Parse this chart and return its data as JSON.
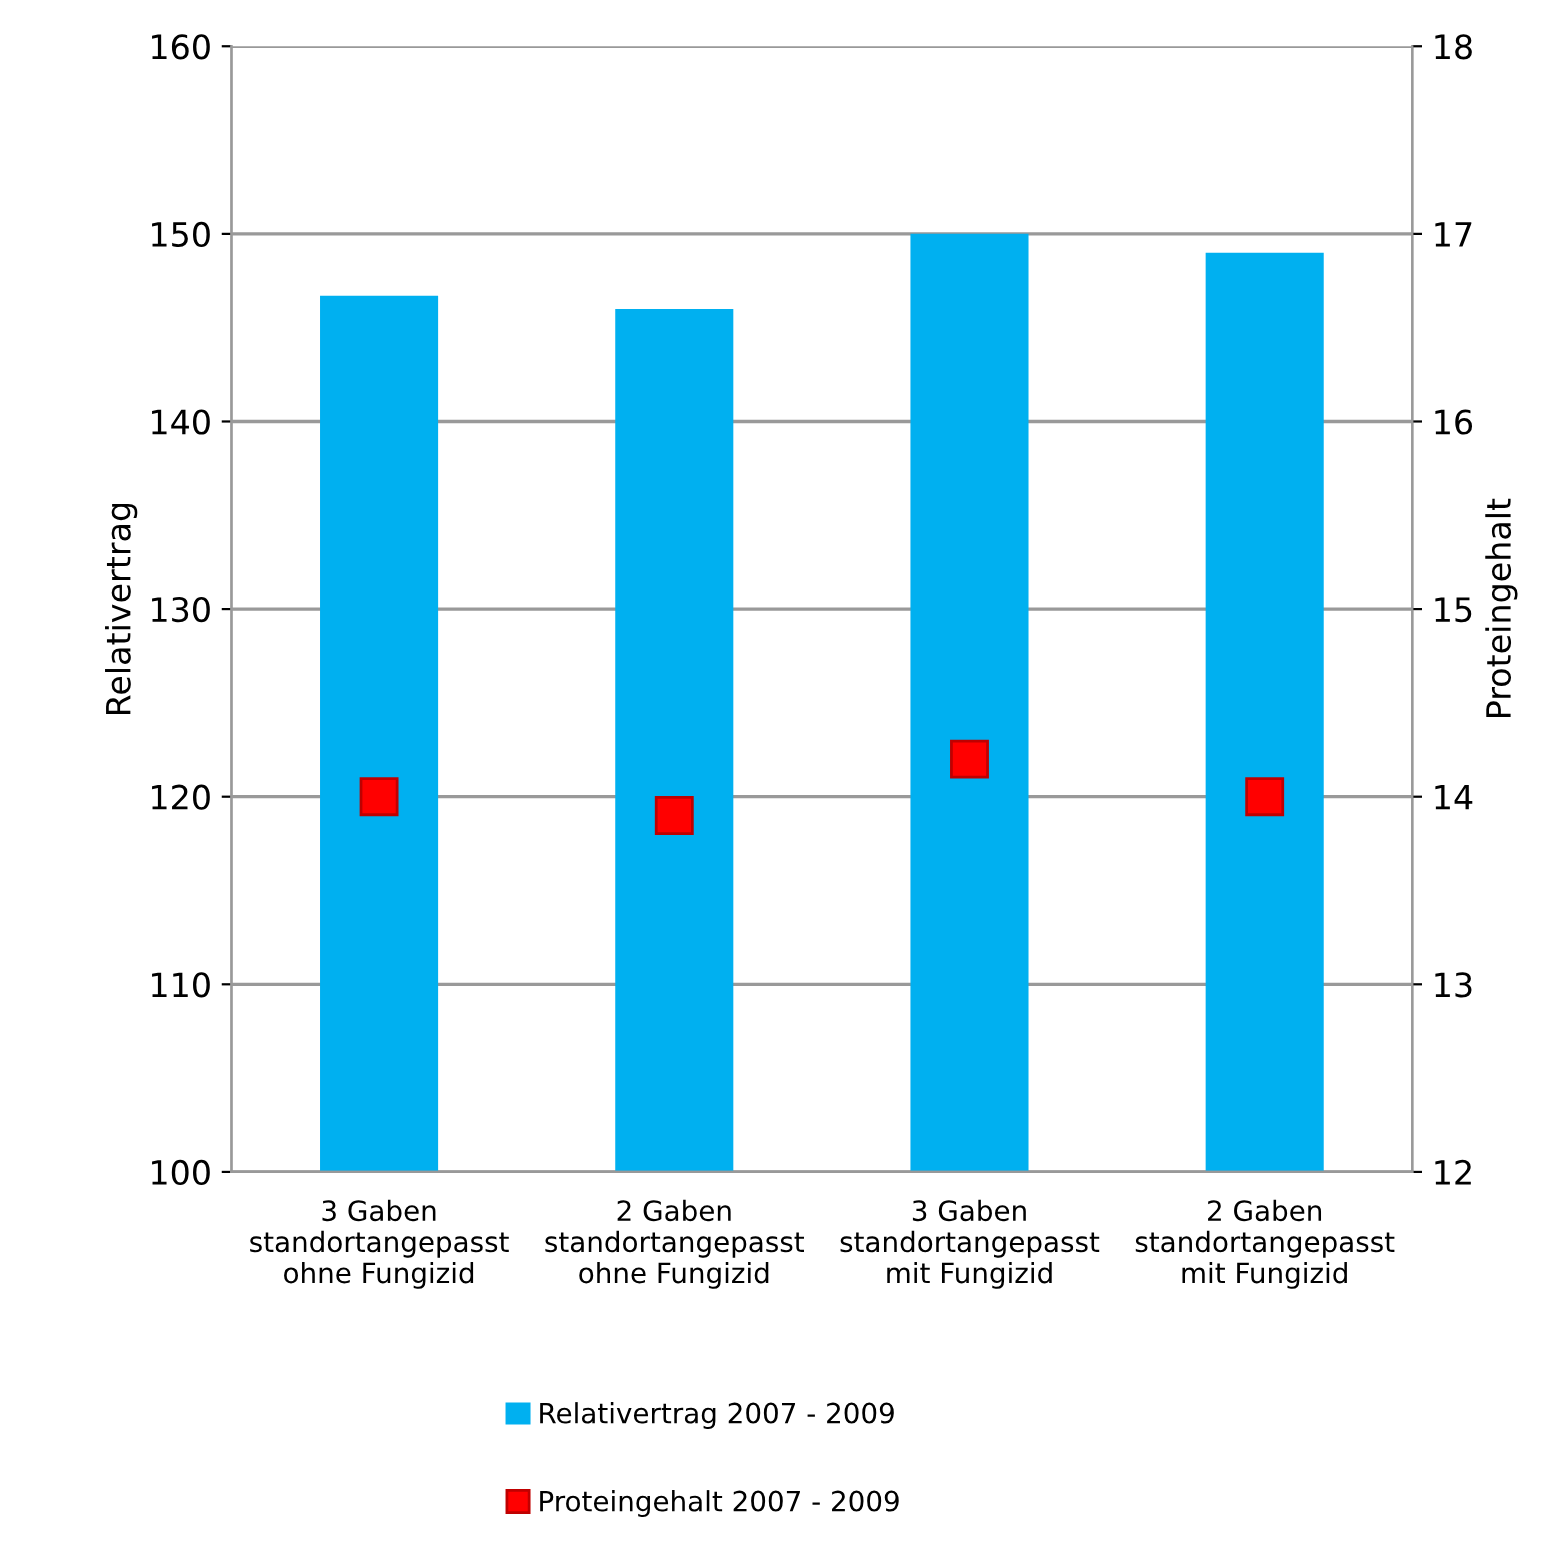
{
  "chart_data": {
    "type": "bar",
    "categories": [
      "3 Gaben\nstandortangepasst\nohne Fungizid",
      "2 Gaben\nstandortangepasst\nohne Fungizid",
      "3 Gaben\nstandortangepasst\nmit Fungizid",
      "2 Gaben\nstandortangepasst\nmit Fungizid"
    ],
    "series": [
      {
        "name": "Relativertrag 2007 - 2009",
        "color": "#00b0f0",
        "values": [
          146.7,
          146.0,
          150.0,
          149.0
        ]
      },
      {
        "name": "Proteingehalt 2007 - 2009",
        "type": "scatter",
        "axis": "y2",
        "color": "#ff0000",
        "values": [
          14.0,
          13.9,
          14.2,
          14.0
        ]
      }
    ],
    "ylabel": "Relativertrag",
    "y2label": "Proteingehalt",
    "ylim": [
      100,
      160
    ],
    "yticks": [
      100,
      110,
      120,
      130,
      140,
      150,
      160
    ],
    "y2lim": [
      12,
      18
    ],
    "y2ticks": [
      12,
      13,
      14,
      15,
      16,
      17,
      18
    ],
    "grid": "y",
    "legend": "bottom",
    "marker": "square"
  }
}
